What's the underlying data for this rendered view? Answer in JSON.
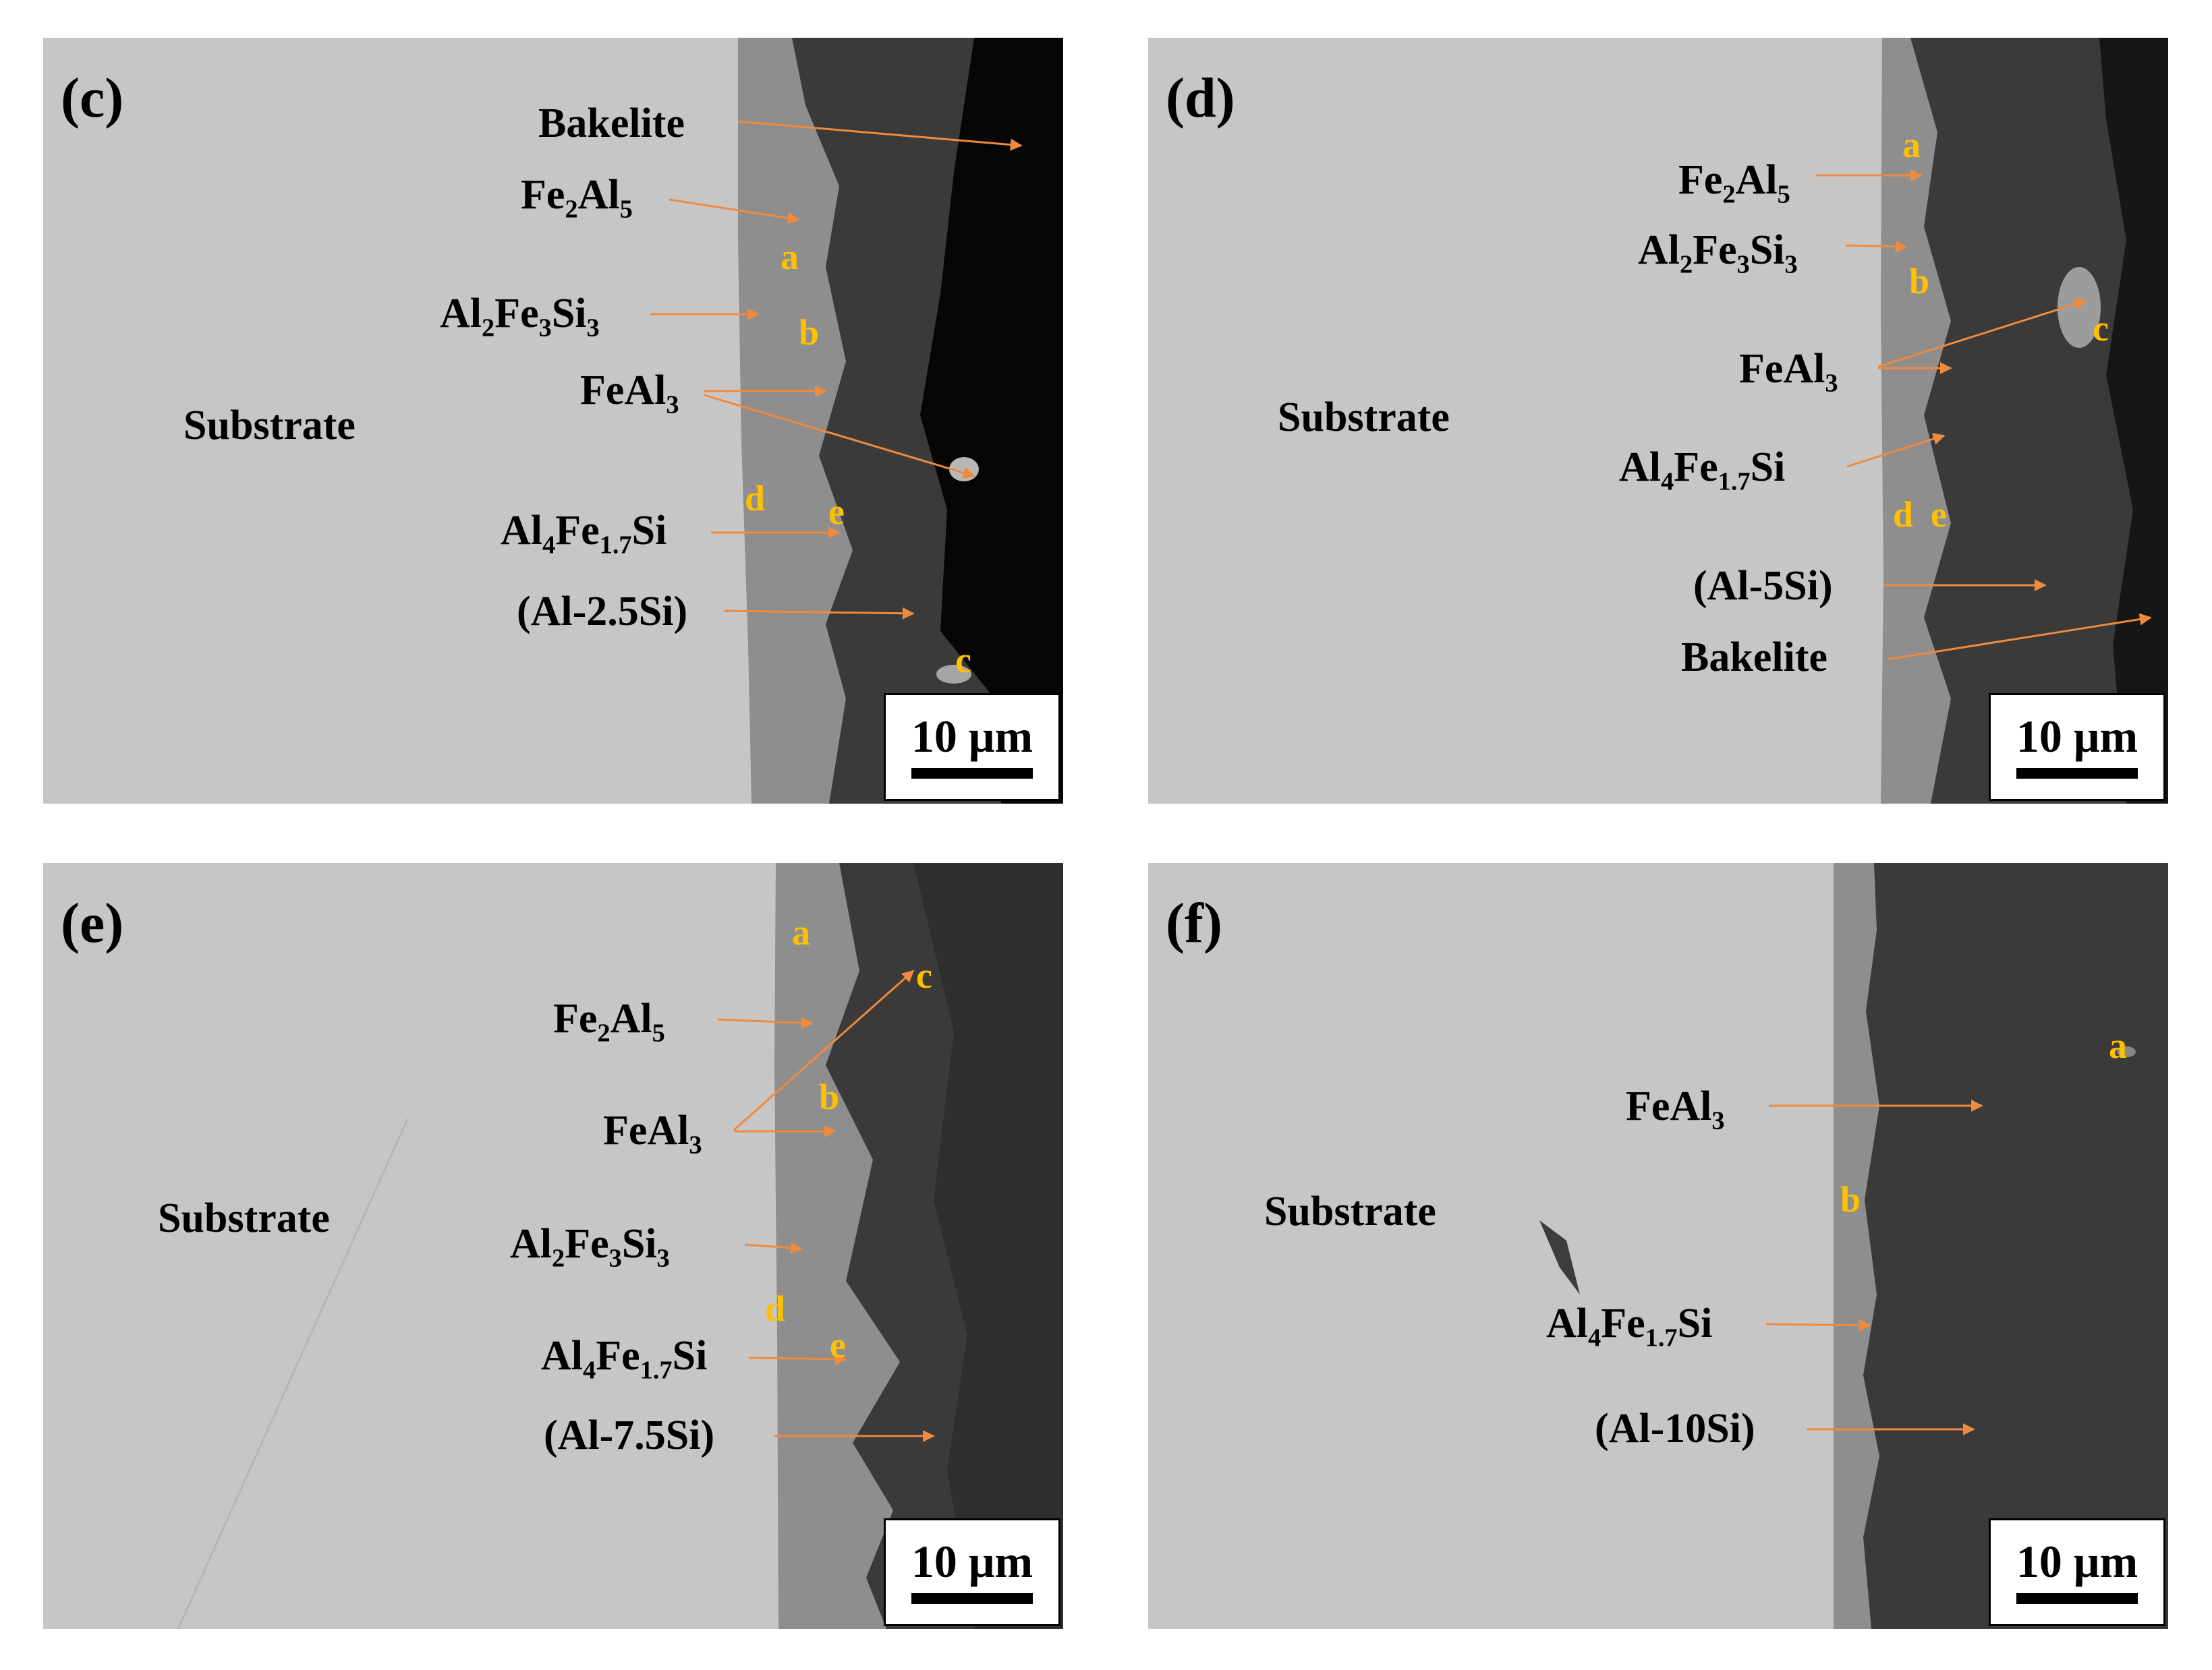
{
  "colors": {
    "substrate": "#c6c6c6",
    "coating": "#8e8e8e",
    "al_si_layer": "#3a3a3a",
    "bakelite": "#060606",
    "arrow": "#f08a3c",
    "phase_letter": "#ffc000"
  },
  "panels": [
    {
      "id": "c",
      "label": "(c)",
      "substrate": "Substrate",
      "scale_bar": "10 μm",
      "labels": {
        "bakelite": "Bakelite",
        "fe2al5": {
          "a": "Fe",
          "b": "2",
          "c": "Al",
          "d": "5"
        },
        "al2fe3si3": {
          "a": "Al",
          "b": "2",
          "c": "Fe",
          "d": "3",
          "e": "Si",
          "f": "3"
        },
        "feal3": {
          "a": "FeAl",
          "b": "3"
        },
        "al4fe17si": {
          "a": "Al",
          "b": "4",
          "c": "Fe",
          "d": "1.7",
          "e": "Si"
        },
        "alsi": "(Al-2.5Si)"
      },
      "letters": [
        "a",
        "b",
        "c",
        "d",
        "e"
      ]
    },
    {
      "id": "d",
      "label": "(d)",
      "substrate": "Substrate",
      "scale_bar": "10 μm",
      "labels": {
        "fe2al5": {
          "a": "Fe",
          "b": "2",
          "c": "Al",
          "d": "5"
        },
        "al2fe3si3": {
          "a": "Al",
          "b": "2",
          "c": "Fe",
          "d": "3",
          "e": "Si",
          "f": "3"
        },
        "feal3": {
          "a": "FeAl",
          "b": "3"
        },
        "al4fe17si": {
          "a": "Al",
          "b": "4",
          "c": "Fe",
          "d": "1.7",
          "e": "Si"
        },
        "alsi": "(Al-5Si)",
        "bakelite": "Bakelite"
      },
      "letters": [
        "a",
        "b",
        "c",
        "d",
        "e"
      ]
    },
    {
      "id": "e",
      "label": "(e)",
      "substrate": "Substrate",
      "scale_bar": "10 μm",
      "labels": {
        "fe2al5": {
          "a": "Fe",
          "b": "2",
          "c": "Al",
          "d": "5"
        },
        "feal3": {
          "a": "FeAl",
          "b": "3"
        },
        "al2fe3si3": {
          "a": "Al",
          "b": "2",
          "c": "Fe",
          "d": "3",
          "e": "Si",
          "f": "3"
        },
        "al4fe17si": {
          "a": "Al",
          "b": "4",
          "c": "Fe",
          "d": "1.7",
          "e": "Si"
        },
        "alsi": "(Al-7.5Si)"
      },
      "letters": [
        "a",
        "b",
        "c",
        "d",
        "e"
      ]
    },
    {
      "id": "f",
      "label": "(f)",
      "substrate": "Substrate",
      "scale_bar": "10 μm",
      "labels": {
        "feal3": {
          "a": "FeAl",
          "b": "3"
        },
        "al4fe17si": {
          "a": "Al",
          "b": "4",
          "c": "Fe",
          "d": "1.7",
          "e": "Si"
        },
        "alsi": "(Al-10Si)"
      },
      "letters": [
        "a",
        "b"
      ]
    }
  ]
}
